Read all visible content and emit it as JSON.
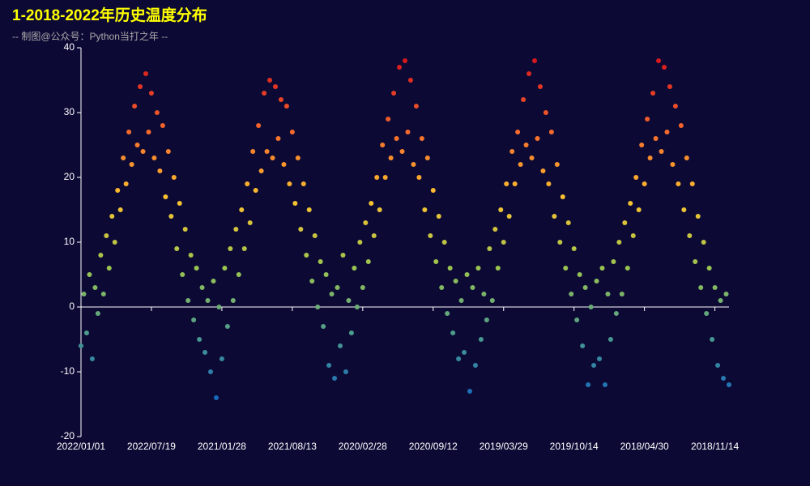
{
  "chart_data": {
    "type": "scatter",
    "title": "1-2018-2022年历史温度分布",
    "subtitle": "-- 制图@公众号：Python当打之年 --",
    "categories": [
      "2022/01/01",
      null,
      null,
      null,
      null,
      null,
      null,
      null,
      null,
      null,
      null,
      null,
      null,
      null,
      null,
      null,
      null,
      null,
      null,
      null,
      null,
      null,
      null,
      null,
      null,
      "2022/07/19",
      null,
      null,
      null,
      null,
      null,
      null,
      null,
      null,
      null,
      null,
      null,
      null,
      null,
      null,
      null,
      null,
      null,
      null,
      null,
      null,
      null,
      null,
      null,
      null,
      "2021/01/28",
      null,
      null,
      null,
      null,
      null,
      null,
      null,
      null,
      null,
      null,
      null,
      null,
      null,
      null,
      null,
      null,
      null,
      null,
      null,
      null,
      null,
      null,
      null,
      null,
      "2021/08/13",
      null,
      null,
      null,
      null,
      null,
      null,
      null,
      null,
      null,
      null,
      null,
      null,
      null,
      null,
      null,
      null,
      null,
      null,
      null,
      null,
      null,
      null,
      null,
      null,
      "2020/02/28",
      null,
      null,
      null,
      null,
      null,
      null,
      null,
      null,
      null,
      null,
      null,
      null,
      null,
      null,
      null,
      null,
      null,
      null,
      null,
      null,
      null,
      null,
      null,
      null,
      "2020/09/12",
      null,
      null,
      null,
      null,
      null,
      null,
      null,
      null,
      null,
      null,
      null,
      null,
      null,
      null,
      null,
      null,
      null,
      null,
      null,
      null,
      null,
      null,
      null,
      null,
      "2019/03/29",
      null,
      null,
      null,
      null,
      null,
      null,
      null,
      null,
      null,
      null,
      null,
      null,
      null,
      null,
      null,
      null,
      null,
      null,
      null,
      null,
      null,
      null,
      null,
      null,
      "2019/10/14",
      null,
      null,
      null,
      null,
      null,
      null,
      null,
      null,
      null,
      null,
      null,
      null,
      null,
      null,
      null,
      null,
      null,
      null,
      null,
      null,
      null,
      null,
      null,
      null,
      "2018/04/30",
      null,
      null,
      null,
      null,
      null,
      null,
      null,
      null,
      null,
      null,
      null,
      null,
      null,
      null,
      null,
      null,
      null,
      null,
      null,
      null,
      null,
      null,
      null,
      null,
      "2018/11/14",
      null,
      null,
      null,
      null,
      null
    ],
    "values": [
      -6,
      2,
      -4,
      5,
      -8,
      3,
      -1,
      8,
      2,
      11,
      6,
      14,
      10,
      18,
      15,
      23,
      19,
      27,
      22,
      31,
      25,
      34,
      24,
      36,
      27,
      33,
      23,
      30,
      21,
      28,
      17,
      24,
      14,
      20,
      9,
      16,
      5,
      12,
      1,
      8,
      -2,
      6,
      -5,
      3,
      -7,
      1,
      -10,
      4,
      -14,
      0,
      -8,
      6,
      -3,
      9,
      1,
      12,
      5,
      15,
      9,
      19,
      13,
      24,
      18,
      28,
      21,
      33,
      24,
      35,
      23,
      34,
      26,
      32,
      22,
      31,
      19,
      27,
      16,
      23,
      12,
      19,
      8,
      15,
      4,
      11,
      0,
      7,
      -3,
      5,
      -9,
      2,
      -11,
      3,
      -6,
      8,
      -10,
      1,
      -4,
      6,
      0,
      10,
      3,
      13,
      7,
      16,
      11,
      20,
      15,
      25,
      20,
      29,
      23,
      33,
      26,
      37,
      24,
      38,
      27,
      35,
      22,
      31,
      20,
      26,
      15,
      23,
      11,
      18,
      7,
      14,
      3,
      10,
      -1,
      6,
      -4,
      4,
      -8,
      1,
      -7,
      5,
      -13,
      3,
      -9,
      6,
      -5,
      2,
      -2,
      9,
      1,
      12,
      6,
      15,
      10,
      19,
      14,
      24,
      19,
      27,
      22,
      32,
      25,
      36,
      23,
      38,
      26,
      34,
      21,
      30,
      19,
      27,
      14,
      22,
      10,
      17,
      6,
      13,
      2,
      9,
      -2,
      5,
      -6,
      3,
      -12,
      0,
      -9,
      4,
      -8,
      6,
      -12,
      2,
      -5,
      7,
      -1,
      10,
      2,
      13,
      6,
      16,
      11,
      20,
      15,
      25,
      19,
      29,
      23,
      33,
      26,
      38,
      24,
      37,
      27,
      34,
      22,
      31,
      19,
      28,
      15,
      23,
      11,
      19,
      7,
      14,
      3,
      10,
      -1,
      6,
      -5,
      3,
      -9,
      1,
      -11,
      2,
      -12
    ],
    "ylim": [
      -20,
      40
    ],
    "yticks": [
      -20,
      -10,
      0,
      10,
      20,
      30,
      40
    ],
    "visual_map": {
      "min": -15,
      "max": 38,
      "colors": [
        "#1565c0",
        "#4a9a8f",
        "#9cc550",
        "#fdc22f",
        "#f7672c",
        "#d7191c"
      ]
    }
  }
}
